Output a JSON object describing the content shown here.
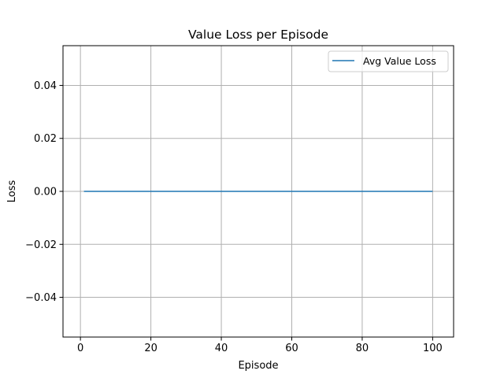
{
  "chart_data": {
    "type": "line",
    "title": "Value Loss per Episode",
    "xlabel": "Episode",
    "ylabel": "Loss",
    "xlim": [
      -4.95,
      105.95
    ],
    "ylim": [
      -0.055,
      0.055
    ],
    "xticks": [
      0,
      20,
      40,
      60,
      80,
      100
    ],
    "xtick_labels": [
      "0",
      "20",
      "40",
      "60",
      "80",
      "100"
    ],
    "yticks": [
      -0.04,
      -0.02,
      0.0,
      0.02,
      0.04
    ],
    "ytick_labels": [
      "−0.04",
      "−0.02",
      "0.00",
      "0.02",
      "0.04"
    ],
    "grid": true,
    "legend_position": "top-right",
    "series": [
      {
        "name": "Avg Value Loss",
        "color": "#1f77b4",
        "x": [
          1,
          100
        ],
        "y": [
          0.0,
          0.0
        ]
      }
    ]
  }
}
